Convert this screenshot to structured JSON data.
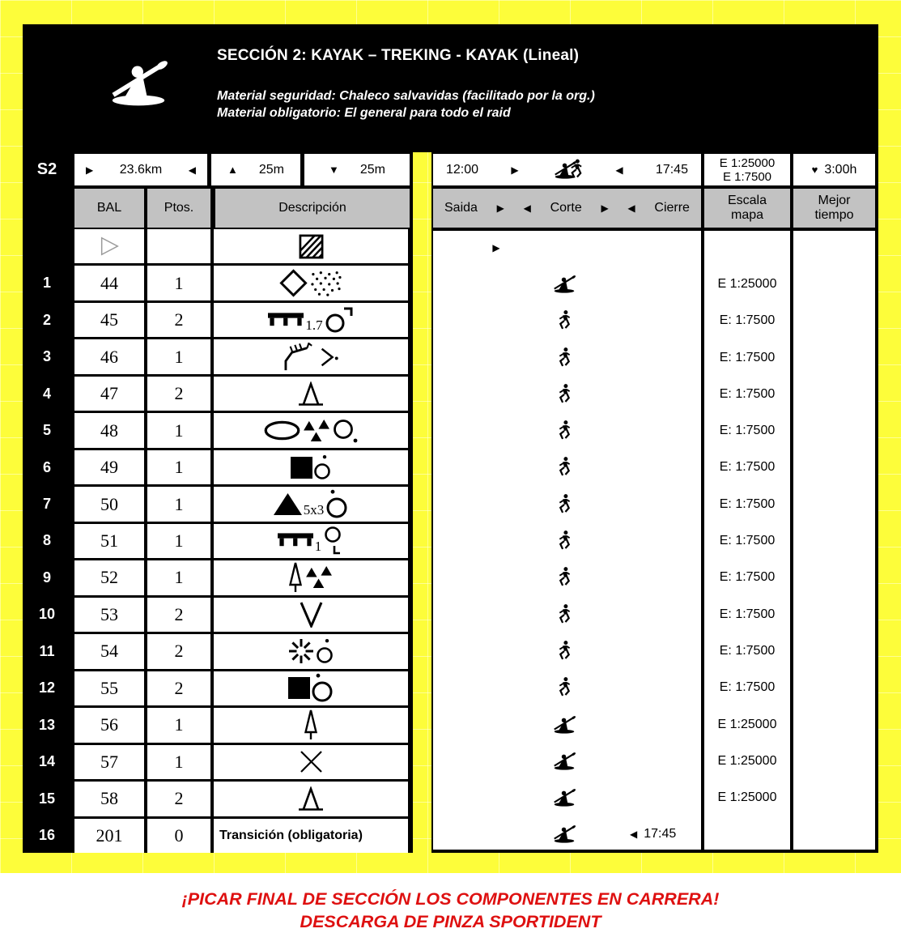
{
  "colors": {
    "yellow": "#FDFD3A",
    "header_gray": "#C2C2C2",
    "footer_red": "#DE1010",
    "black": "#000000",
    "white": "#FFFFFF"
  },
  "arrows": {
    "right": "▶",
    "left": "◀",
    "up": "▲",
    "down": "▼"
  },
  "heart": "♥",
  "header": {
    "title": "SECCIÓN 2: KAYAK – TREKING - KAYAK (Lineal)",
    "material_line1": "Material seguridad: Chaleco salvavidas (facilitado por la org.)",
    "material_line2": "Material obligatorio: El general para todo el raid",
    "sport_icon": "kayak-icon"
  },
  "summary": {
    "section_label": "S2",
    "distance": "23.6km",
    "ascent": "25m",
    "descent": "25m",
    "start_time": "12:00",
    "end_time": "17:45",
    "scales": "E 1:25000\nE 1:7500",
    "best_time": "3:00h"
  },
  "columns": {
    "bal": "BAL",
    "ptos": "Ptos.",
    "descripcion": "Descripción",
    "saida": "Saida",
    "corte": "Corte",
    "cierre": "Cierre",
    "escala": "Escala\nmapa",
    "mejor": "Mejor\ntiempo"
  },
  "rows": [
    {
      "num": "",
      "bal": "",
      "bal_icon": "start-triangle",
      "ptos": "",
      "symbols": [
        "hatched-square"
      ],
      "leg": "start",
      "scale": ""
    },
    {
      "num": "1",
      "bal": "44",
      "ptos": "1",
      "symbols": [
        "diamond",
        "dot-area"
      ],
      "leg": "kayak",
      "scale": "E 1:25000"
    },
    {
      "num": "2",
      "bal": "45",
      "ptos": "2",
      "symbols": [
        "comb",
        "sub:1.7",
        "circle-corner-tr"
      ],
      "leg": "runner",
      "scale": "E: 1:7500"
    },
    {
      "num": "3",
      "bal": "46",
      "ptos": "1",
      "symbols": [
        "earth-bank",
        "angle-dot"
      ],
      "leg": "runner",
      "scale": "E: 1:7500"
    },
    {
      "num": "4",
      "bal": "47",
      "ptos": "2",
      "symbols": [
        "triangle-base"
      ],
      "leg": "runner",
      "scale": "E: 1:7500"
    },
    {
      "num": "5",
      "bal": "48",
      "ptos": "1",
      "symbols": [
        "ellipse",
        "tri-cluster",
        "circle-dot-br"
      ],
      "leg": "runner",
      "scale": "E: 1:7500"
    },
    {
      "num": "6",
      "bal": "49",
      "ptos": "1",
      "symbols": [
        "square",
        "circle-dot-top-sm"
      ],
      "leg": "runner",
      "scale": "E: 1:7500"
    },
    {
      "num": "7",
      "bal": "50",
      "ptos": "1",
      "symbols": [
        "triangle-filled",
        "sub:5x3",
        "circle-dot-top"
      ],
      "leg": "runner",
      "scale": "E: 1:7500"
    },
    {
      "num": "8",
      "bal": "51",
      "ptos": "1",
      "symbols": [
        "comb",
        "sub:1",
        "circle-corner-b"
      ],
      "leg": "runner",
      "scale": "E: 1:7500"
    },
    {
      "num": "9",
      "bal": "52",
      "ptos": "1",
      "symbols": [
        "tree",
        "tri-cluster"
      ],
      "leg": "runner",
      "scale": "E: 1:7500"
    },
    {
      "num": "10",
      "bal": "53",
      "ptos": "2",
      "symbols": [
        "vee"
      ],
      "leg": "runner",
      "scale": "E: 1:7500"
    },
    {
      "num": "11",
      "bal": "54",
      "ptos": "2",
      "symbols": [
        "burst",
        "circle-dot-top-sm"
      ],
      "leg": "runner",
      "scale": "E: 1:7500"
    },
    {
      "num": "12",
      "bal": "55",
      "ptos": "2",
      "symbols": [
        "square",
        "circle-dot-top"
      ],
      "leg": "runner",
      "scale": "E: 1:7500"
    },
    {
      "num": "13",
      "bal": "56",
      "ptos": "1",
      "symbols": [
        "tree"
      ],
      "leg": "kayak",
      "scale": "E 1:25000"
    },
    {
      "num": "14",
      "bal": "57",
      "ptos": "1",
      "symbols": [
        "cross"
      ],
      "leg": "kayak",
      "scale": "E 1:25000"
    },
    {
      "num": "15",
      "bal": "58",
      "ptos": "2",
      "symbols": [
        "triangle-base"
      ],
      "leg": "kayak",
      "scale": "E 1:25000"
    },
    {
      "num": "16",
      "bal": "201",
      "ptos": "0",
      "desc_text": "Transición (obligatoria)",
      "leg": "kayak",
      "finish_arrow": "◀",
      "finish_time": "17:45",
      "scale": ""
    }
  ],
  "footer": {
    "line1": "¡PICAR FINAL DE SECCIÓN LOS COMPONENTES EN CARRERA!",
    "line2": "DESCARGA DE PINZA SPORTIDENT"
  }
}
